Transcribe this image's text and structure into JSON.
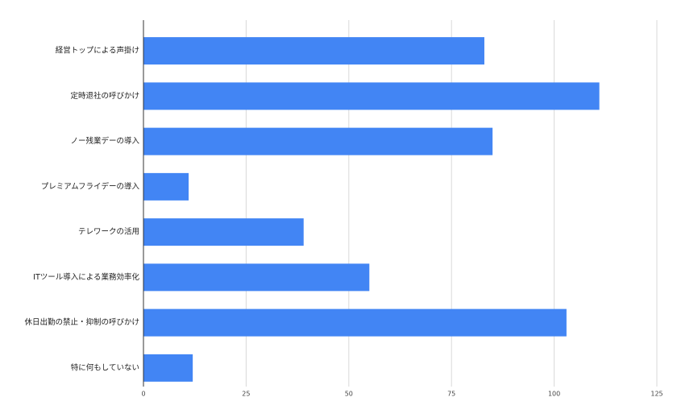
{
  "chart_data": {
    "type": "bar",
    "categories": [
      "経営トップによる声掛け",
      "定時退社の呼びかけ",
      "ノー残業デーの導入",
      "プレミアムフライデーの導入",
      "テレワークの活用",
      "ITツール導入による業務効率化",
      "休日出勤の禁止・抑制の呼びかけ",
      "特に何もしていない"
    ],
    "values": [
      83,
      111,
      85,
      11,
      39,
      55,
      103,
      12
    ],
    "color": "#4285f4",
    "xlim": [
      0,
      125
    ],
    "xticks": [
      0,
      25,
      50,
      75,
      100,
      125
    ],
    "grid": true
  }
}
